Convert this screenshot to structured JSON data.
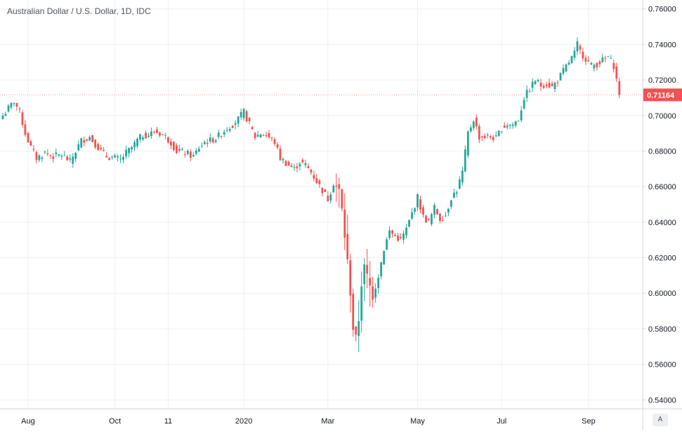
{
  "header": {
    "title": "Australian Dollar / U.S. Dollar, 1D, IDC"
  },
  "price_axis": {
    "last_price_label": "0.71164",
    "auto_scale_label": "A"
  },
  "colors": {
    "up": "#26a69a",
    "down": "#ef5350",
    "grid": "#eef0f3",
    "axis_text": "#131722",
    "border": "#d1d4dc"
  },
  "chart_data": {
    "type": "candlestick",
    "title": "Australian Dollar / U.S. Dollar, 1D, IDC",
    "xlabel": "",
    "ylabel": "",
    "ylim": [
      0.535,
      0.765
    ],
    "grid": true,
    "y_ticks": [
      "0.76000",
      "0.74000",
      "0.72000",
      "0.70000",
      "0.68000",
      "0.66000",
      "0.64000",
      "0.62000",
      "0.60000",
      "0.58000",
      "0.56000",
      "0.54000"
    ],
    "x_ticks": [
      {
        "label": "Aug",
        "index": 9
      },
      {
        "label": "Oct",
        "index": 40
      },
      {
        "label": "11",
        "index": 59
      },
      {
        "label": "2020",
        "index": 86
      },
      {
        "label": "Mar",
        "index": 116
      },
      {
        "label": "May",
        "index": 148
      },
      {
        "label": "Jul",
        "index": 178
      },
      {
        "label": "Sep",
        "index": 209
      }
    ],
    "last_price": 0.71164,
    "close_path": [
      [
        0,
        0.7
      ],
      [
        3,
        0.706
      ],
      [
        4,
        0.708
      ],
      [
        6,
        0.702
      ],
      [
        8,
        0.69
      ],
      [
        10,
        0.682
      ],
      [
        12,
        0.676
      ],
      [
        15,
        0.679
      ],
      [
        18,
        0.677
      ],
      [
        21,
        0.678
      ],
      [
        24,
        0.674
      ],
      [
        26,
        0.68
      ],
      [
        28,
        0.686
      ],
      [
        31,
        0.688
      ],
      [
        33,
        0.684
      ],
      [
        35,
        0.68
      ],
      [
        37,
        0.677
      ],
      [
        40,
        0.676
      ],
      [
        42,
        0.675
      ],
      [
        44,
        0.679
      ],
      [
        46,
        0.682
      ],
      [
        48,
        0.686
      ],
      [
        50,
        0.689
      ],
      [
        52,
        0.689
      ],
      [
        54,
        0.691
      ],
      [
        56,
        0.69
      ],
      [
        58,
        0.688
      ],
      [
        60,
        0.685
      ],
      [
        62,
        0.68
      ],
      [
        65,
        0.679
      ],
      [
        68,
        0.677
      ],
      [
        70,
        0.682
      ],
      [
        72,
        0.685
      ],
      [
        74,
        0.686
      ],
      [
        76,
        0.687
      ],
      [
        78,
        0.69
      ],
      [
        80,
        0.693
      ],
      [
        82,
        0.695
      ],
      [
        84,
        0.698
      ],
      [
        86,
        0.702
      ],
      [
        88,
        0.695
      ],
      [
        90,
        0.688
      ],
      [
        92,
        0.69
      ],
      [
        94,
        0.689
      ],
      [
        97,
        0.685
      ],
      [
        99,
        0.676
      ],
      [
        102,
        0.672
      ],
      [
        104,
        0.67
      ],
      [
        106,
        0.674
      ],
      [
        108,
        0.672
      ],
      [
        110,
        0.668
      ],
      [
        112,
        0.663
      ],
      [
        114,
        0.658
      ],
      [
        116,
        0.653
      ],
      [
        118,
        0.662
      ],
      [
        120,
        0.658
      ],
      [
        121,
        0.647
      ],
      [
        122,
        0.632
      ],
      [
        123,
        0.618
      ],
      [
        124,
        0.6
      ],
      [
        125,
        0.58
      ],
      [
        126,
        0.575
      ],
      [
        127,
        0.585
      ],
      [
        128,
        0.605
      ],
      [
        129,
        0.615
      ],
      [
        130,
        0.61
      ],
      [
        132,
        0.598
      ],
      [
        134,
        0.61
      ],
      [
        136,
        0.625
      ],
      [
        138,
        0.635
      ],
      [
        140,
        0.632
      ],
      [
        142,
        0.63
      ],
      [
        144,
        0.636
      ],
      [
        146,
        0.645
      ],
      [
        148,
        0.654
      ],
      [
        150,
        0.643
      ],
      [
        152,
        0.64
      ],
      [
        154,
        0.648
      ],
      [
        156,
        0.642
      ],
      [
        158,
        0.644
      ],
      [
        160,
        0.654
      ],
      [
        162,
        0.658
      ],
      [
        164,
        0.668
      ],
      [
        166,
        0.69
      ],
      [
        168,
        0.698
      ],
      [
        170,
        0.688
      ],
      [
        172,
        0.688
      ],
      [
        174,
        0.688
      ],
      [
        176,
        0.687
      ],
      [
        178,
        0.693
      ],
      [
        180,
        0.695
      ],
      [
        182,
        0.695
      ],
      [
        184,
        0.698
      ],
      [
        186,
        0.71
      ],
      [
        188,
        0.715
      ],
      [
        190,
        0.72
      ],
      [
        192,
        0.717
      ],
      [
        194,
        0.718
      ],
      [
        196,
        0.716
      ],
      [
        198,
        0.72
      ],
      [
        200,
        0.725
      ],
      [
        202,
        0.73
      ],
      [
        204,
        0.735
      ],
      [
        205,
        0.74
      ],
      [
        206,
        0.736
      ],
      [
        208,
        0.732
      ],
      [
        210,
        0.728
      ],
      [
        212,
        0.729
      ],
      [
        214,
        0.731
      ],
      [
        216,
        0.733
      ],
      [
        218,
        0.728
      ],
      [
        219,
        0.72
      ],
      [
        220,
        0.7116
      ]
    ]
  }
}
